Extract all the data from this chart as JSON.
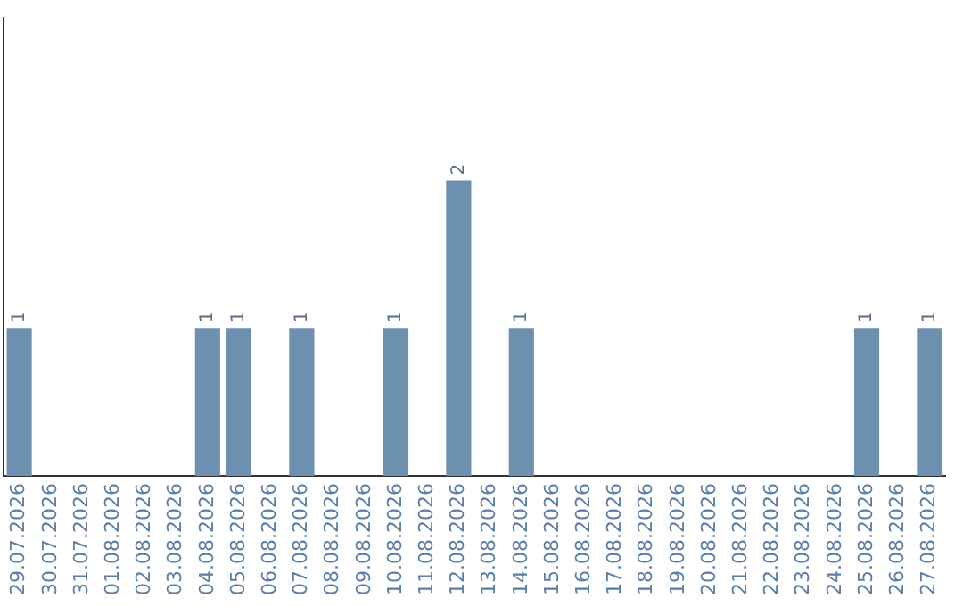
{
  "chart_data": {
    "type": "bar",
    "categories": [
      "29.07.2026",
      "30.07.2026",
      "31.07.2026",
      "01.08.2026",
      "02.08.2026",
      "03.08.2026",
      "04.08.2026",
      "05.08.2026",
      "06.08.2026",
      "07.08.2026",
      "08.08.2026",
      "09.08.2026",
      "10.08.2026",
      "11.08.2026",
      "12.08.2026",
      "13.08.2026",
      "14.08.2026",
      "15.08.2026",
      "16.08.2026",
      "17.08.2026",
      "18.08.2026",
      "19.08.2026",
      "20.08.2026",
      "21.08.2026",
      "22.08.2026",
      "23.08.2026",
      "24.08.2026",
      "25.08.2026",
      "26.08.2026",
      "27.08.2026"
    ],
    "values": [
      1,
      0,
      0,
      0,
      0,
      0,
      1,
      1,
      0,
      1,
      0,
      0,
      1,
      0,
      2,
      0,
      1,
      0,
      0,
      0,
      0,
      0,
      0,
      0,
      0,
      0,
      0,
      1,
      0,
      1
    ],
    "value_labels": [
      "1",
      null,
      null,
      null,
      null,
      null,
      "1",
      "1",
      null,
      "1",
      null,
      null,
      "1",
      null,
      "2",
      null,
      "1",
      null,
      null,
      null,
      null,
      null,
      null,
      null,
      null,
      null,
      null,
      "1",
      null,
      "1"
    ],
    "color": "#6d8fb0",
    "ylim": [
      0,
      3.1
    ],
    "grid": false,
    "legend": false,
    "tick_labels": "x"
  }
}
